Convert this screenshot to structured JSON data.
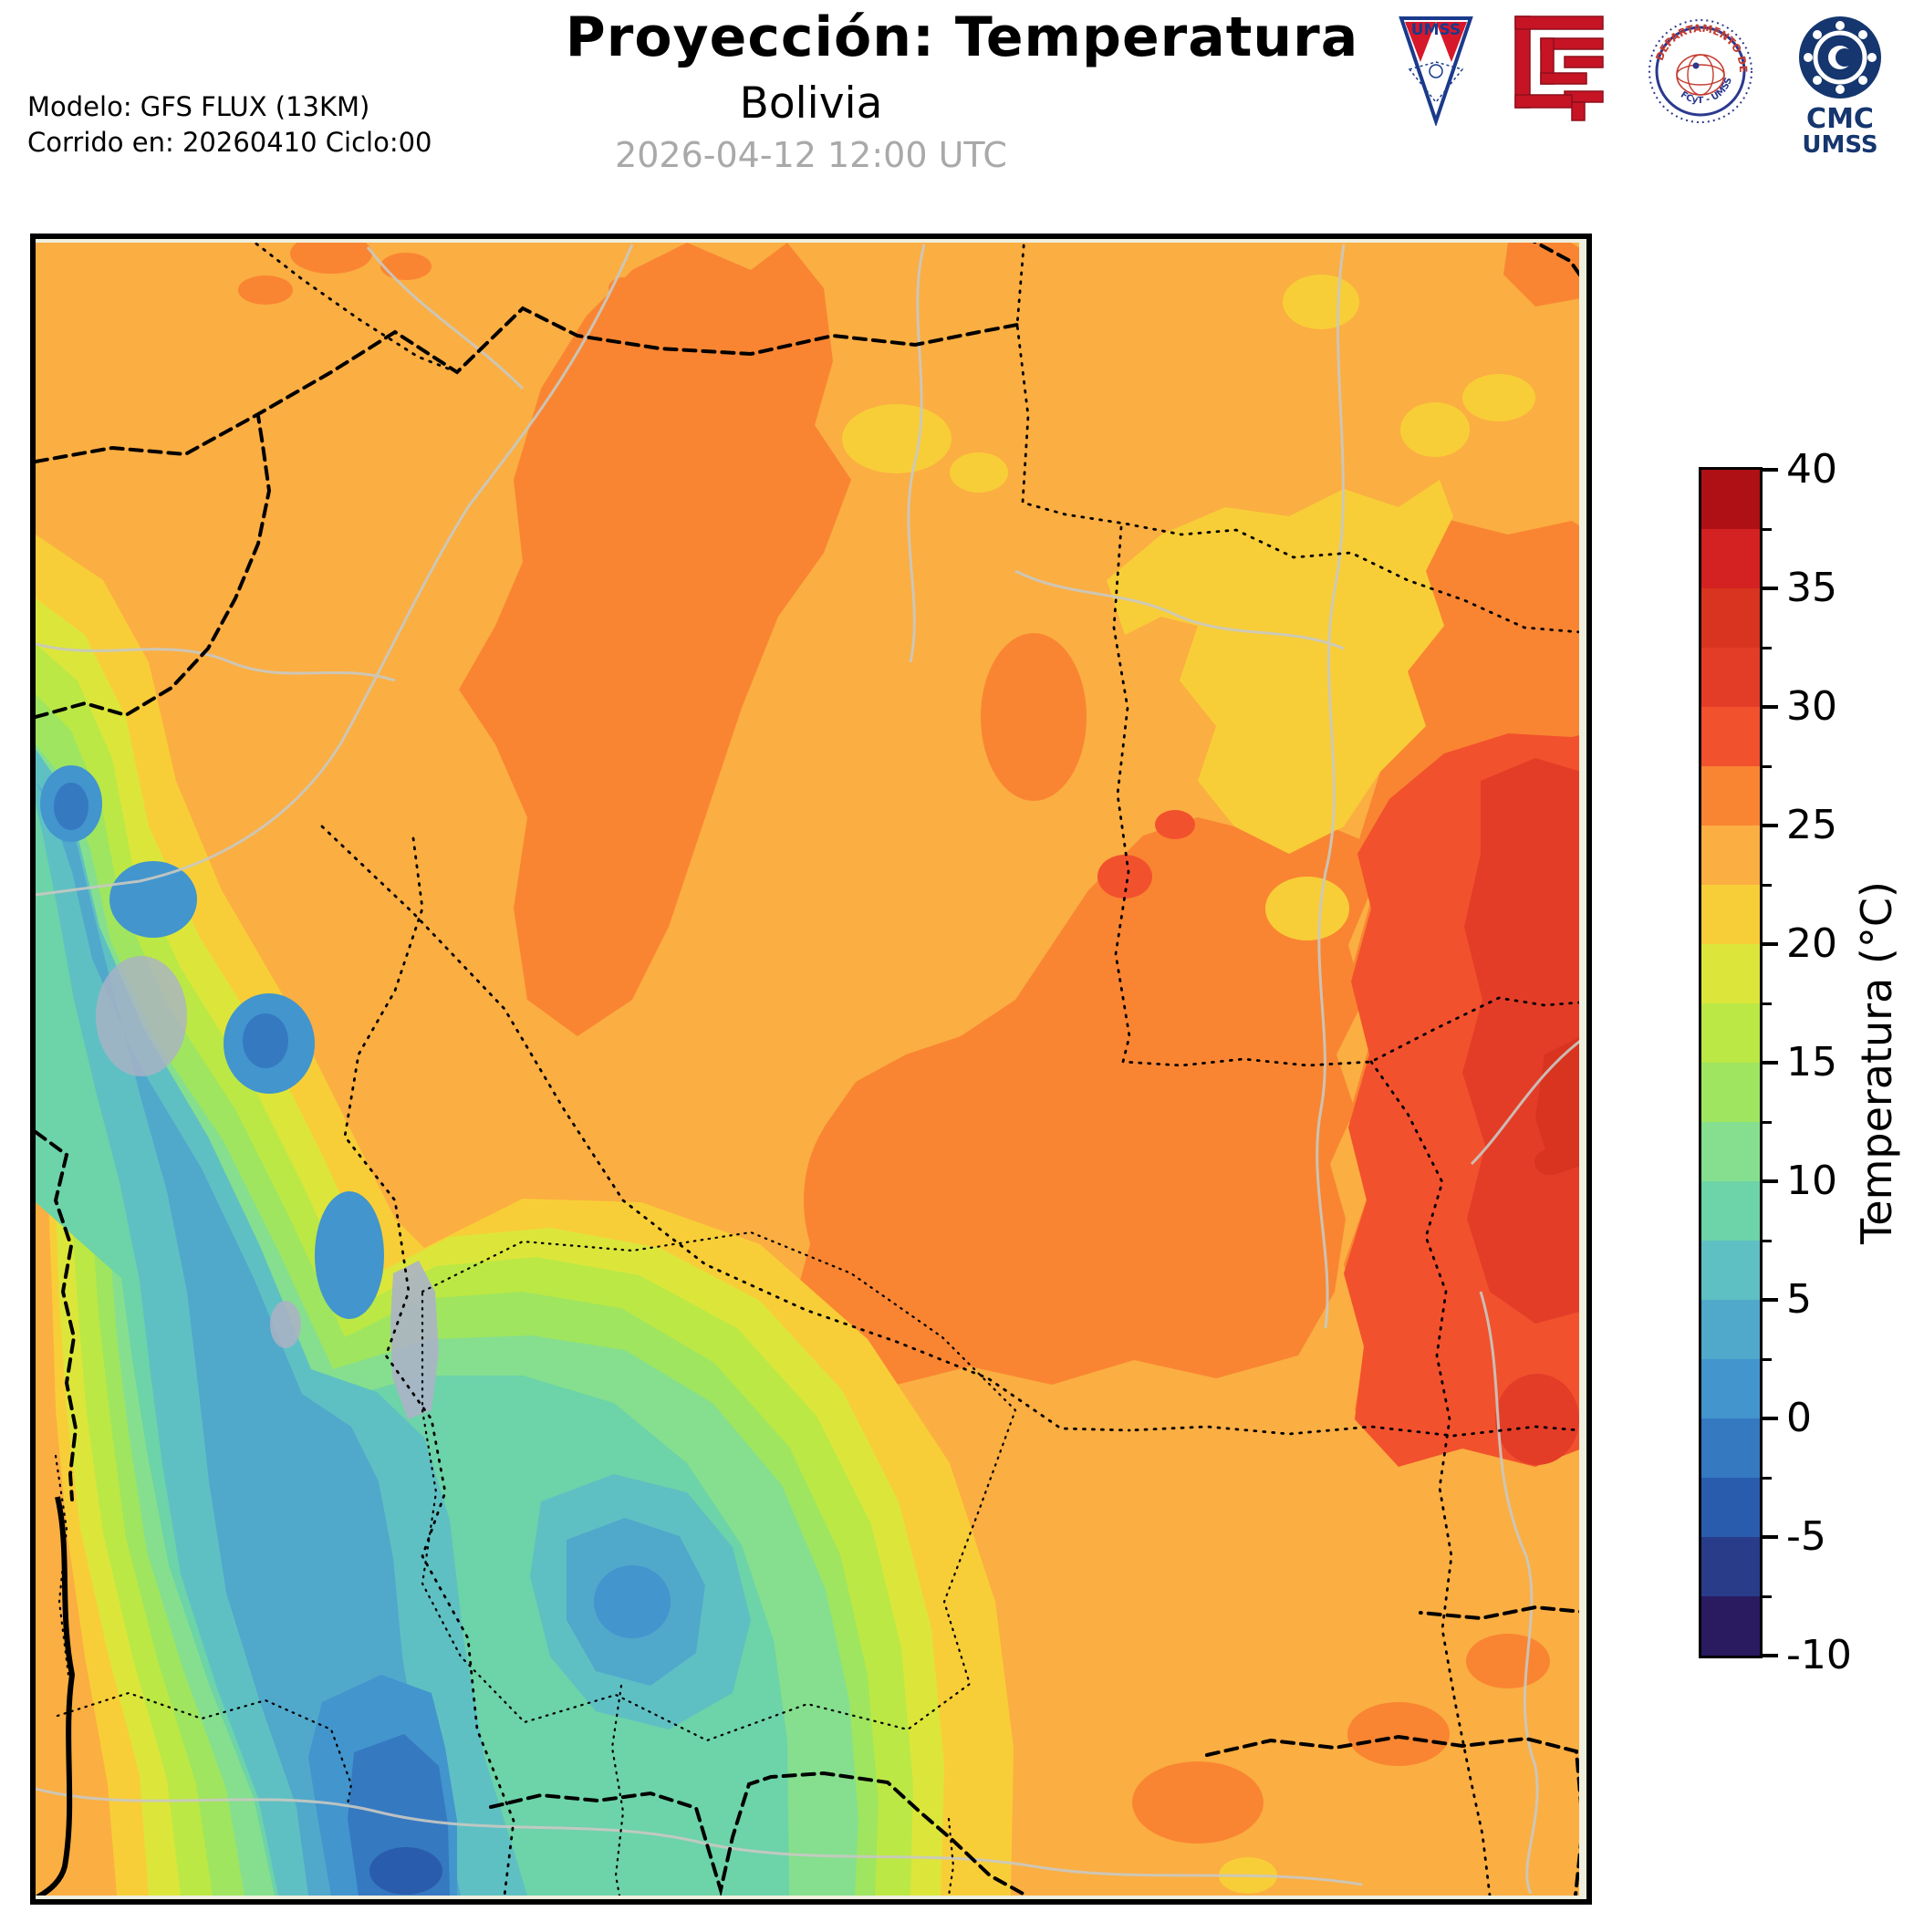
{
  "header": {
    "title": "Proyección: Temperatura",
    "subtitle": "Bolivia",
    "datetime": "2026-04-12 12:00 UTC",
    "model_line1": "Modelo: GFS FLUX (13KM)",
    "model_line2": "Corrido en: 20260410 Ciclo:00"
  },
  "logos": {
    "umss_pennant_text": "UMSS",
    "fisica_seal_text_top": "DEPARTAMENTO DE FÍSICA",
    "fisica_seal_text_bottom": "FCyT - UMSS",
    "cmc_line1": "CMC",
    "cmc_line2": "UMSS"
  },
  "colorbar": {
    "label": "Temperatura (°C)",
    "max": 40,
    "min": -10,
    "degrees_per_segment": 2.5,
    "tick_labels_top_to_bottom": [
      "40",
      "35",
      "30",
      "25",
      "20",
      "15",
      "10",
      "5",
      "0",
      "-5",
      "-10"
    ],
    "segments_top_to_bottom": [
      "#af1015",
      "#d42121",
      "#d8341f",
      "#e33d28",
      "#f2512d",
      "#f98532",
      "#fbae42",
      "#f8ce38",
      "#dce63a",
      "#bce845",
      "#9fe55f",
      "#85df8e",
      "#6dd3a8",
      "#5fc0c3",
      "#50a8cb",
      "#4295cd",
      "#3579c1",
      "#2a5cae",
      "#293c8a",
      "#2a1a60"
    ]
  },
  "map": {
    "palette": {
      "b375_40": "#af1015",
      "b35_375": "#d42121",
      "b325_35": "#d8341f",
      "b30_325": "#e33d28",
      "b275_30": "#f2512d",
      "b25_275": "#f98532",
      "b225_25": "#fbae42",
      "b20_225": "#f8ce38",
      "b175_20": "#dce63a",
      "b15_175": "#bce845",
      "b125_15": "#9fe55f",
      "b10_125": "#85df8e",
      "b75_10": "#6dd3a8",
      "b5_75": "#5fc0c3",
      "b25_5": "#50a8cb",
      "b0_25": "#4295cd",
      "bm25_0": "#3579c1",
      "bm5_m25": "#2a5cae",
      "bm75_m5": "#293c8a",
      "bm10_m75": "#2a1a60",
      "salt_flat": "#abb2c6",
      "river": "#c9c9c2",
      "boundary": "#000000",
      "plot_bg": "#efefdf"
    },
    "summary": {
      "west_andes_band_temp_c": "-5 to 15",
      "altiplano_plateau_temp_c": "5 to 10",
      "eastern_lowlands_temp_c": "22 to 28",
      "far_east_chaco_temp_c": "28 to 35"
    }
  }
}
